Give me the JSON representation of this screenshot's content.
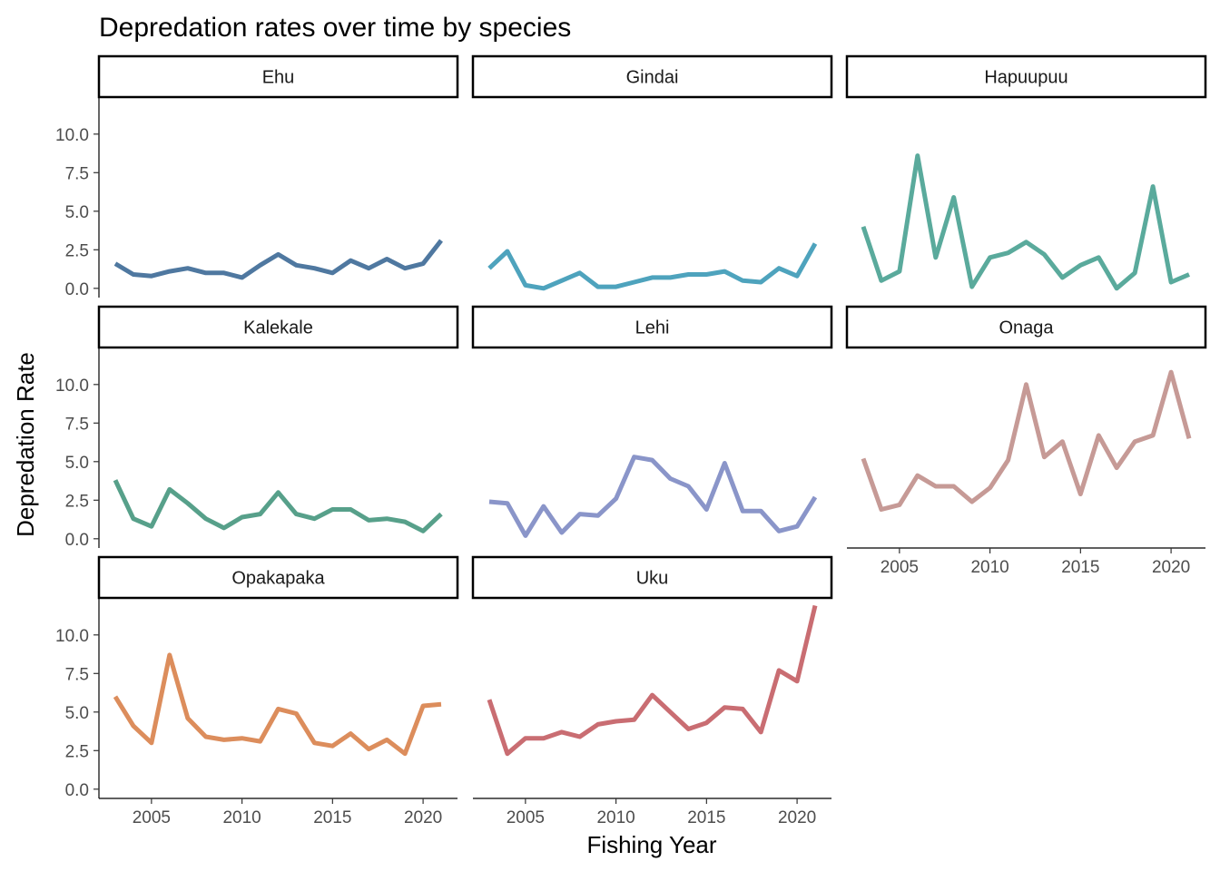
{
  "chart_data": {
    "type": "line",
    "title": "Depredation rates over time by species",
    "xlabel": "Fishing Year",
    "ylabel": "Depredation Rate",
    "xlim": [
      2002.1,
      2021.9
    ],
    "ylim": [
      -0.6,
      12.4
    ],
    "x_ticks": [
      2005,
      2010,
      2015,
      2020
    ],
    "y_ticks": [
      0.0,
      2.5,
      5.0,
      7.5,
      10.0
    ],
    "y_tick_labels": [
      "0.0",
      "2.5",
      "5.0",
      "7.5",
      "10.0"
    ],
    "x": [
      2003,
      2004,
      2005,
      2006,
      2007,
      2008,
      2009,
      2010,
      2011,
      2012,
      2013,
      2014,
      2015,
      2016,
      2017,
      2018,
      2019,
      2020,
      2021
    ],
    "grid": false,
    "legend": "none",
    "facets": [
      {
        "name": "Ehu",
        "color": "#4f78a0",
        "values": [
          1.6,
          0.9,
          0.8,
          1.1,
          1.3,
          1.0,
          1.0,
          0.7,
          1.5,
          2.2,
          1.5,
          1.3,
          1.0,
          1.8,
          1.3,
          1.9,
          1.3,
          1.6,
          3.1
        ]
      },
      {
        "name": "Gindai",
        "color": "#4ea3bd",
        "values": [
          1.3,
          2.4,
          0.2,
          0.0,
          0.5,
          1.0,
          0.1,
          0.1,
          0.4,
          0.7,
          0.7,
          0.9,
          0.9,
          1.1,
          0.5,
          0.4,
          1.3,
          0.8,
          2.9
        ]
      },
      {
        "name": "Hapuupuu",
        "color": "#5aaa9c",
        "values": [
          4.0,
          0.5,
          1.1,
          8.6,
          2.0,
          5.9,
          0.1,
          2.0,
          2.3,
          3.0,
          2.2,
          0.7,
          1.5,
          2.0,
          0.0,
          1.0,
          6.6,
          0.4,
          0.9
        ]
      },
      {
        "name": "Kalekale",
        "color": "#57a08a",
        "values": [
          3.8,
          1.3,
          0.8,
          3.2,
          2.3,
          1.3,
          0.7,
          1.4,
          1.6,
          3.0,
          1.6,
          1.3,
          1.9,
          1.9,
          1.2,
          1.3,
          1.1,
          0.5,
          1.6
        ]
      },
      {
        "name": "Lehi",
        "color": "#8a95c9",
        "values": [
          2.4,
          2.3,
          0.2,
          2.1,
          0.4,
          1.6,
          1.5,
          2.6,
          5.3,
          5.1,
          3.9,
          3.4,
          1.9,
          4.9,
          1.8,
          1.8,
          0.5,
          0.8,
          2.7
        ]
      },
      {
        "name": "Onaga",
        "color": "#c69a96",
        "values": [
          5.2,
          1.9,
          2.2,
          4.1,
          3.4,
          3.4,
          2.4,
          3.3,
          5.1,
          10.0,
          5.3,
          6.3,
          2.9,
          6.7,
          4.6,
          6.3,
          6.7,
          10.8,
          6.5
        ]
      },
      {
        "name": "Opakapaka",
        "color": "#dc8d5c",
        "values": [
          6.0,
          4.1,
          3.0,
          8.7,
          4.6,
          3.4,
          3.2,
          3.3,
          3.1,
          5.2,
          4.9,
          3.0,
          2.8,
          3.6,
          2.6,
          3.2,
          2.3,
          5.4,
          5.5
        ]
      },
      {
        "name": "Uku",
        "color": "#c96d72",
        "values": [
          5.8,
          2.3,
          3.3,
          3.3,
          3.7,
          3.4,
          4.2,
          4.4,
          4.5,
          6.1,
          5.0,
          3.9,
          4.3,
          5.3,
          5.2,
          3.7,
          7.7,
          7.0,
          11.9
        ]
      }
    ]
  }
}
